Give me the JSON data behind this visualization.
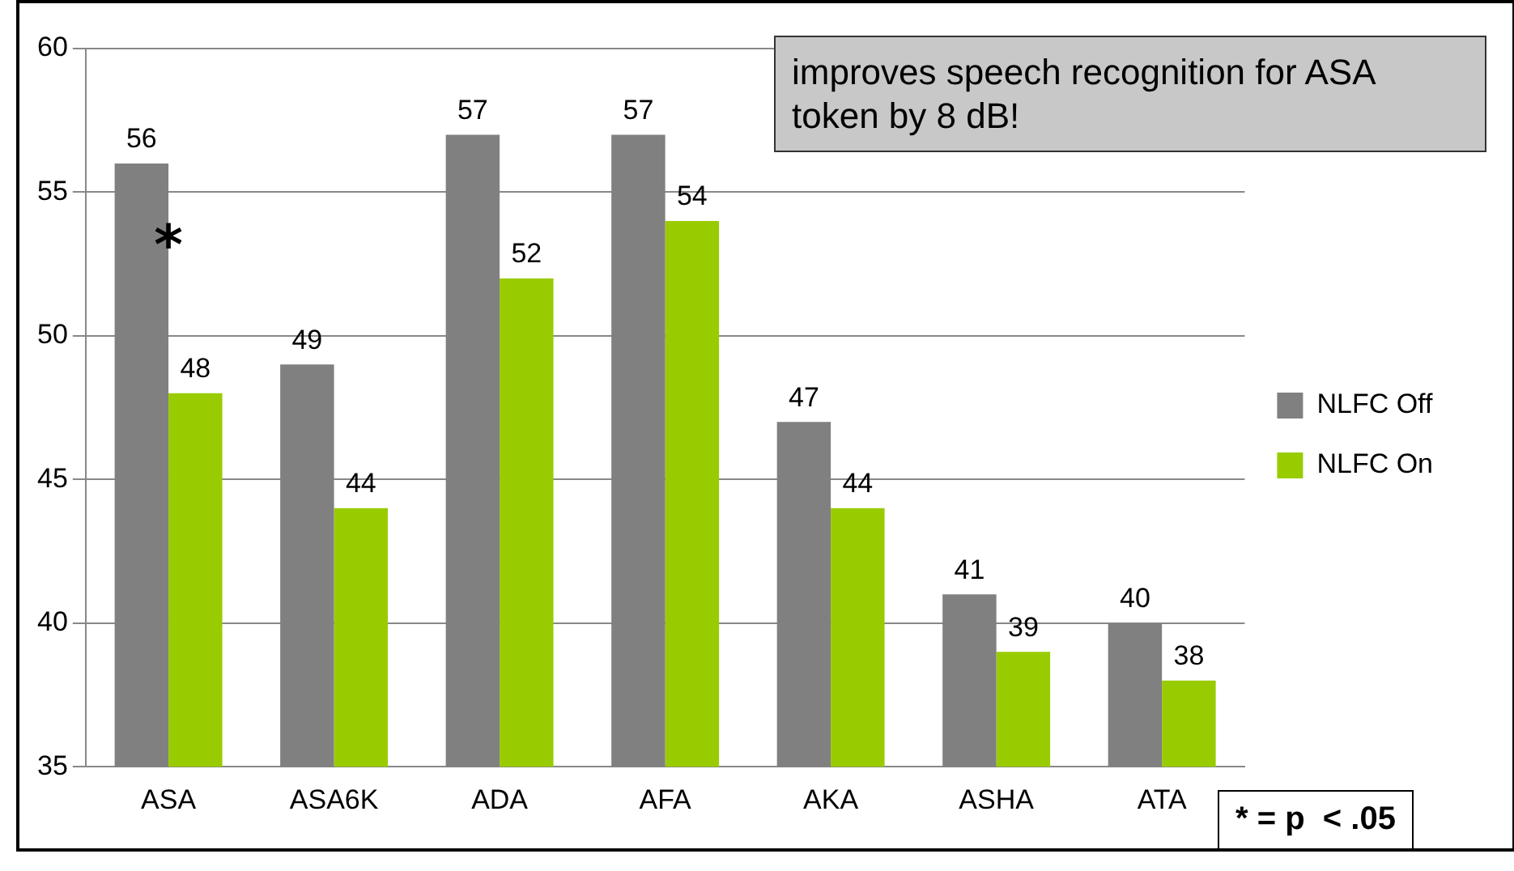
{
  "chart_data": {
    "type": "bar",
    "categories": [
      "ASA",
      "ASA6K",
      "ADA",
      "AFA",
      "AKA",
      "ASHA",
      "ATA"
    ],
    "series": [
      {
        "name": "NLFC Off",
        "color": "#808080",
        "values": [
          56,
          49,
          57,
          57,
          47,
          41,
          40
        ]
      },
      {
        "name": "NLFC On",
        "color": "#99cc00",
        "values": [
          48,
          44,
          52,
          54,
          44,
          39,
          38
        ]
      }
    ],
    "ylim": [
      35,
      60
    ],
    "yticks": [
      35,
      40,
      45,
      50,
      55,
      60
    ],
    "grid": "y",
    "legend": "right",
    "data_labels": true,
    "annotations": [
      "improves speech recognition for ASA token by 8 dB!",
      {
        "text": "*",
        "x": "ASA",
        "y": 53
      },
      "* = p  < .05"
    ]
  }
}
